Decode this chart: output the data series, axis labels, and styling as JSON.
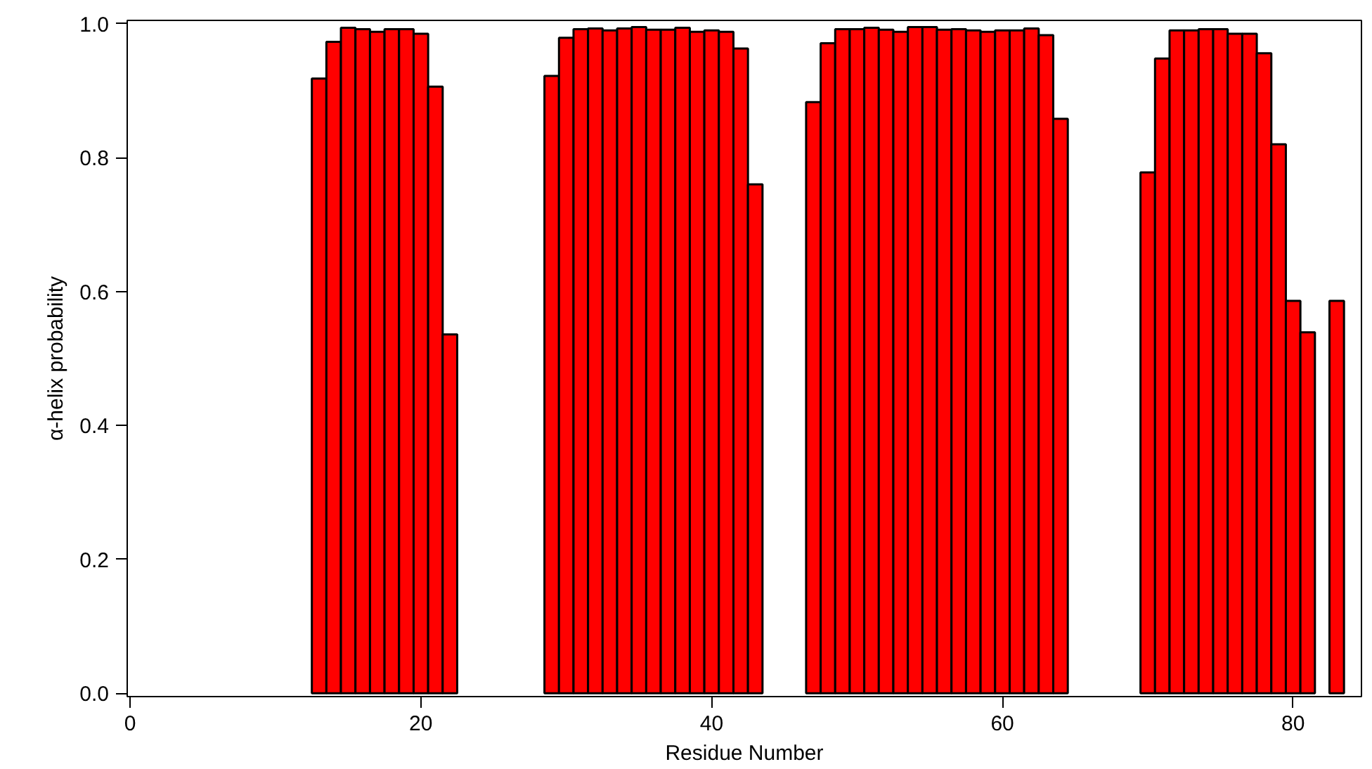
{
  "chart_data": {
    "type": "bar",
    "xlabel": "Residue Number",
    "ylabel": "α-helix probability",
    "x": [
      13,
      14,
      15,
      16,
      17,
      18,
      19,
      20,
      21,
      22,
      29,
      30,
      31,
      32,
      33,
      34,
      35,
      36,
      37,
      38,
      39,
      40,
      41,
      42,
      43,
      47,
      48,
      49,
      50,
      51,
      52,
      53,
      54,
      55,
      56,
      57,
      58,
      59,
      60,
      61,
      62,
      63,
      64,
      70,
      71,
      72,
      73,
      74,
      75,
      76,
      77,
      78,
      79,
      80,
      81,
      83
    ],
    "values": [
      0.918,
      0.973,
      0.994,
      0.992,
      0.988,
      0.992,
      0.992,
      0.985,
      0.906,
      0.536,
      0.922,
      0.979,
      0.992,
      0.993,
      0.99,
      0.993,
      0.995,
      0.991,
      0.991,
      0.994,
      0.988,
      0.99,
      0.988,
      0.963,
      0.76,
      0.883,
      0.971,
      0.992,
      0.992,
      0.994,
      0.991,
      0.988,
      0.995,
      0.995,
      0.991,
      0.992,
      0.99,
      0.988,
      0.99,
      0.99,
      0.993,
      0.983,
      0.858,
      0.778,
      0.948,
      0.99,
      0.99,
      0.992,
      0.992,
      0.985,
      0.985,
      0.956,
      0.82,
      0.586,
      0.539,
      0.586
    ],
    "color": "#ff0000",
    "xlim": [
      -0.2,
      84.7
    ],
    "ylim": [
      -0.005,
      1.005
    ],
    "xticks": [
      0,
      20,
      40,
      60,
      80
    ],
    "yticks": [
      {
        "value": 0,
        "label": "0.0"
      },
      {
        "value": 0.2,
        "label": "0.2"
      },
      {
        "value": 0.4,
        "label": "0.4"
      },
      {
        "value": 0.6,
        "label": "0.6"
      },
      {
        "value": 0.8,
        "label": "0.8"
      },
      {
        "value": 1,
        "label": "1.0"
      }
    ],
    "grid": false
  }
}
